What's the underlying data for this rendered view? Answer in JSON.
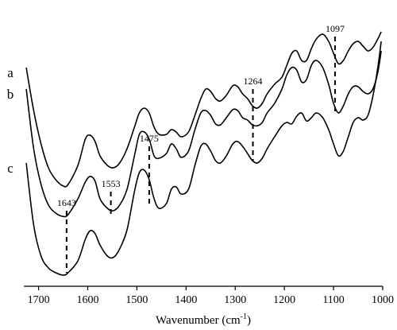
{
  "chart_data": {
    "type": "line",
    "xlabel": "Wavenumber (cm",
    "xlabel_sup": "-1",
    "xlabel_close": ")",
    "xlim": [
      1730,
      1000
    ],
    "x_reversed": true,
    "y_axis_shown": false,
    "xticks": [
      1700,
      1600,
      1500,
      1400,
      1300,
      1200,
      1100,
      1000
    ],
    "peak_markers": [
      {
        "x": 1643,
        "label": "1643",
        "y_top": 0.0,
        "y_bottom": -1.3
      },
      {
        "x": 1553,
        "label": "1553",
        "y_top": 0.4,
        "y_bottom": -0.15
      },
      {
        "x": 1475,
        "label": "1475",
        "y_top": 1.35,
        "y_bottom": 0.15
      },
      {
        "x": 1264,
        "label": "1264",
        "y_top": 2.55,
        "y_bottom": 1.05
      },
      {
        "x": 1097,
        "label": "1097",
        "y_top": 3.65,
        "y_bottom": 2.0
      }
    ],
    "series": [
      {
        "name": "a",
        "x": [
          1725,
          1710,
          1695,
          1680,
          1665,
          1650,
          1640,
          1620,
          1605,
          1595,
          1585,
          1575,
          1560,
          1548,
          1535,
          1520,
          1505,
          1495,
          1485,
          1475,
          1465,
          1455,
          1440,
          1430,
          1420,
          1410,
          1395,
          1382,
          1370,
          1360,
          1350,
          1340,
          1330,
          1318,
          1305,
          1295,
          1285,
          1275,
          1265,
          1255,
          1245,
          1235,
          1220,
          1205,
          1195,
          1185,
          1175,
          1165,
          1155,
          1145,
          1135,
          1122,
          1110,
          1100,
          1090,
          1080,
          1070,
          1060,
          1050,
          1040,
          1030,
          1020,
          1010,
          1003
        ],
        "y": [
          3.0,
          2.1,
          1.4,
          0.9,
          0.65,
          0.52,
          0.55,
          0.95,
          1.5,
          1.58,
          1.45,
          1.15,
          0.95,
          0.9,
          1.0,
          1.3,
          1.75,
          2.05,
          2.15,
          2.05,
          1.75,
          1.6,
          1.6,
          1.7,
          1.65,
          1.55,
          1.65,
          2.0,
          2.35,
          2.55,
          2.5,
          2.35,
          2.3,
          2.42,
          2.62,
          2.6,
          2.45,
          2.35,
          2.2,
          2.15,
          2.25,
          2.45,
          2.65,
          2.8,
          3.05,
          3.3,
          3.35,
          3.15,
          3.15,
          3.4,
          3.6,
          3.7,
          3.55,
          3.3,
          3.08,
          3.15,
          3.35,
          3.5,
          3.55,
          3.45,
          3.35,
          3.42,
          3.6,
          3.75
        ]
      },
      {
        "name": "b",
        "x": [
          1725,
          1710,
          1695,
          1680,
          1665,
          1650,
          1640,
          1620,
          1605,
          1595,
          1585,
          1575,
          1560,
          1548,
          1535,
          1520,
          1505,
          1495,
          1485,
          1475,
          1465,
          1455,
          1440,
          1430,
          1420,
          1410,
          1395,
          1382,
          1370,
          1360,
          1350,
          1340,
          1330,
          1318,
          1305,
          1295,
          1285,
          1275,
          1265,
          1255,
          1245,
          1235,
          1220,
          1205,
          1195,
          1185,
          1175,
          1165,
          1155,
          1145,
          1135,
          1122,
          1110,
          1100,
          1090,
          1080,
          1070,
          1060,
          1050,
          1040,
          1030,
          1020,
          1010,
          1003
        ],
        "y": [
          2.55,
          1.3,
          0.55,
          0.12,
          -0.05,
          -0.12,
          -0.08,
          0.25,
          0.6,
          0.72,
          0.62,
          0.25,
          0.05,
          0.0,
          0.12,
          0.45,
          1.15,
          1.6,
          1.65,
          1.5,
          1.15,
          1.1,
          1.2,
          1.4,
          1.3,
          1.12,
          1.25,
          1.7,
          2.05,
          2.1,
          2.0,
          1.82,
          1.8,
          1.95,
          2.12,
          2.1,
          1.95,
          1.9,
          1.8,
          1.78,
          1.85,
          2.05,
          2.25,
          2.55,
          2.85,
          3.0,
          2.95,
          2.7,
          2.75,
          3.05,
          3.15,
          3.0,
          2.65,
          2.25,
          2.05,
          2.2,
          2.45,
          2.6,
          2.6,
          2.5,
          2.45,
          2.55,
          2.9,
          3.35
        ]
      },
      {
        "name": "c",
        "x": [
          1725,
          1710,
          1695,
          1680,
          1665,
          1650,
          1640,
          1620,
          1605,
          1595,
          1585,
          1575,
          1560,
          1548,
          1535,
          1520,
          1505,
          1495,
          1485,
          1475,
          1465,
          1455,
          1440,
          1430,
          1420,
          1410,
          1395,
          1382,
          1370,
          1360,
          1350,
          1340,
          1330,
          1318,
          1305,
          1295,
          1285,
          1275,
          1265,
          1255,
          1245,
          1235,
          1220,
          1205,
          1195,
          1185,
          1175,
          1165,
          1155,
          1145,
          1135,
          1122,
          1110,
          1100,
          1090,
          1080,
          1070,
          1060,
          1050,
          1040,
          1030,
          1020,
          1010,
          1003
        ],
        "y": [
          1.0,
          -0.3,
          -0.95,
          -1.2,
          -1.3,
          -1.35,
          -1.3,
          -1.05,
          -0.6,
          -0.42,
          -0.48,
          -0.72,
          -0.95,
          -0.98,
          -0.8,
          -0.4,
          0.4,
          0.8,
          0.85,
          0.65,
          0.25,
          0.05,
          0.15,
          0.45,
          0.5,
          0.35,
          0.45,
          0.95,
          1.35,
          1.4,
          1.25,
          1.05,
          1.0,
          1.15,
          1.4,
          1.45,
          1.35,
          1.2,
          1.05,
          1.0,
          1.1,
          1.3,
          1.55,
          1.78,
          1.85,
          1.82,
          1.98,
          2.05,
          1.88,
          1.95,
          2.05,
          1.95,
          1.7,
          1.4,
          1.15,
          1.25,
          1.55,
          1.85,
          1.95,
          1.9,
          2.0,
          2.4,
          3.0,
          3.55
        ]
      }
    ]
  }
}
